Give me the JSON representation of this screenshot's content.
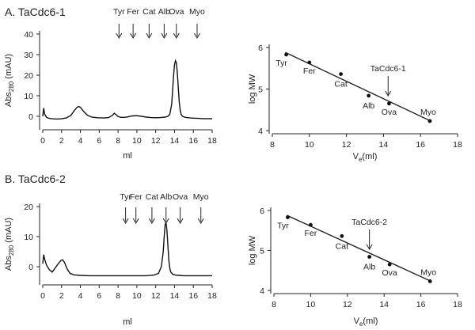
{
  "colors": {
    "ink": "#222222",
    "trace": "#111111",
    "background": "#ffffff"
  },
  "chart_data": [
    {
      "type": "line",
      "panel": "A",
      "title": "A. TaCdc6-1",
      "xlabel": "ml",
      "ylabel": "Abs280 (mAU)",
      "ylabel_main": "Abs",
      "ylabel_sub": "280",
      "ylabel_unit": " (mAU)",
      "xlim": [
        0,
        18
      ],
      "ylim": [
        -5,
        40
      ],
      "xticks": [
        "0",
        "2",
        "4",
        "6",
        "8",
        "10",
        "12",
        "14",
        "16",
        "18"
      ],
      "yticks": [
        "0",
        "10",
        "20",
        "30",
        "40"
      ],
      "grid": false,
      "markers": [
        {
          "name": "Tyr",
          "x": 8.1
        },
        {
          "name": "Fer",
          "x": 9.6
        },
        {
          "name": "Cat",
          "x": 11.3
        },
        {
          "name": "Alb",
          "x": 12.9
        },
        {
          "name": "Ova",
          "x": 14.2
        },
        {
          "name": "Myo",
          "x": 16.4
        }
      ],
      "series": [
        {
          "x": [
            0,
            0.1,
            0.2,
            0.4,
            0.7,
            1.0,
            1.5,
            2.0,
            2.5,
            3.0,
            3.3,
            3.6,
            3.8,
            4.0,
            4.2,
            4.5,
            4.8,
            5.2,
            5.8,
            6.5,
            7.0,
            7.4,
            7.6,
            7.8,
            8.0,
            8.3,
            8.7,
            9.0,
            9.5,
            10.0,
            10.5,
            11.0,
            11.5,
            12.0,
            12.5,
            13.0,
            13.3,
            13.5,
            13.7,
            13.8,
            13.9,
            14.0,
            14.1,
            14.2,
            14.3,
            14.4,
            14.5,
            14.6,
            14.7,
            14.8,
            15.0,
            15.3,
            15.7,
            16.0,
            16.5,
            17.0,
            17.5,
            18.0
          ],
          "y": [
            0,
            4,
            1,
            -0.5,
            -1,
            -1.2,
            -1.3,
            -1.2,
            -0.8,
            0.5,
            2.5,
            4.2,
            4.8,
            4.4,
            3.2,
            1.6,
            0.4,
            -0.4,
            -0.7,
            -0.8,
            -0.6,
            0.5,
            1.5,
            0.8,
            -0.1,
            -0.5,
            -0.5,
            -0.3,
            0.2,
            0.3,
            0,
            -0.4,
            -0.6,
            -0.7,
            -0.6,
            -0.4,
            0,
            1,
            6,
            13,
            20,
            25,
            27,
            26,
            21,
            14,
            7,
            3,
            1,
            0.2,
            -0.3,
            -0.6,
            -0.8,
            -0.9,
            -1,
            -1.1,
            -1.1,
            -1.2
          ]
        }
      ]
    },
    {
      "type": "scatter",
      "panel": "A",
      "xlabel_main": "V",
      "xlabel_sub": "e",
      "xlabel_unit": "(ml)",
      "ylabel": "log MW",
      "xlim": [
        8,
        18
      ],
      "ylim": [
        4,
        6
      ],
      "xticks": [
        "8",
        "10",
        "12",
        "14",
        "16",
        "18"
      ],
      "yticks": [
        "4",
        "5",
        "6"
      ],
      "grid": false,
      "points": [
        {
          "label": "Tyr",
          "x": 8.75,
          "y": 5.83
        },
        {
          "label": "Fer",
          "x": 10.0,
          "y": 5.64
        },
        {
          "label": "Cat",
          "x": 11.7,
          "y": 5.36
        },
        {
          "label": "Alb",
          "x": 13.2,
          "y": 4.84
        },
        {
          "label": "Ova",
          "x": 14.3,
          "y": 4.65
        },
        {
          "label": "Myo",
          "x": 16.5,
          "y": 4.23
        }
      ],
      "fit": {
        "x": [
          8.7,
          16.6
        ],
        "y": [
          5.88,
          4.22
        ]
      },
      "annotation": {
        "text": "TaCdc6-1",
        "x": 14.25,
        "y": 4.78
      }
    },
    {
      "type": "line",
      "panel": "B",
      "title": "B. TaCdc6-2",
      "xlabel": "ml",
      "ylabel": "Abs280 (mAU)",
      "ylabel_main": "Abs",
      "ylabel_sub": "280",
      "ylabel_unit": " (mAU)",
      "xlim": [
        0,
        18
      ],
      "ylim": [
        -5,
        20
      ],
      "xticks": [
        "0",
        "2",
        "4",
        "6",
        "8",
        "10",
        "12",
        "14",
        "16",
        "18"
      ],
      "yticks": [
        "0",
        "10",
        "20"
      ],
      "grid": false,
      "markers": [
        {
          "name": "Tyr",
          "x": 8.8
        },
        {
          "name": "Fer",
          "x": 9.9
        },
        {
          "name": "Cat",
          "x": 11.6
        },
        {
          "name": "Alb",
          "x": 13.1
        },
        {
          "name": "Ova",
          "x": 14.6
        },
        {
          "name": "Myo",
          "x": 16.8
        }
      ],
      "series": [
        {
          "x": [
            0,
            0.1,
            0.2,
            0.4,
            0.7,
            1.0,
            1.3,
            1.6,
            1.9,
            2.1,
            2.3,
            2.6,
            2.9,
            3.3,
            4.0,
            5.0,
            6.0,
            7.0,
            8.0,
            9.0,
            10.0,
            11.0,
            11.8,
            12.3,
            12.6,
            12.8,
            12.9,
            13.0,
            13.1,
            13.2,
            13.3,
            13.4,
            13.5,
            13.6,
            13.8,
            14.1,
            14.5,
            15.0,
            16.0,
            17.0,
            18.0
          ],
          "y": [
            1,
            4,
            2.5,
            0.5,
            -1,
            -1.8,
            -0.5,
            0.8,
            2,
            2.3,
            1.5,
            -0.8,
            -2.2,
            -2.7,
            -2.9,
            -3,
            -3,
            -3,
            -3,
            -3,
            -3,
            -3,
            -2.8,
            -2.2,
            0,
            5,
            10,
            14,
            14.8,
            12,
            7,
            2,
            -0.5,
            -1.8,
            -2.5,
            -2.8,
            -2.9,
            -3,
            -3,
            -3,
            -3
          ]
        }
      ]
    },
    {
      "type": "scatter",
      "panel": "B",
      "xlabel_main": "V",
      "xlabel_sub": "e",
      "xlabel_unit": "(ml)",
      "ylabel": "log MW",
      "xlim": [
        8,
        18
      ],
      "ylim": [
        4,
        6
      ],
      "xticks": [
        "8",
        "10",
        "12",
        "14",
        "16",
        "18"
      ],
      "yticks": [
        "4",
        "5",
        "6"
      ],
      "grid": false,
      "points": [
        {
          "label": "Tyr",
          "x": 8.75,
          "y": 5.83
        },
        {
          "label": "Fer",
          "x": 10.0,
          "y": 5.64
        },
        {
          "label": "Cat",
          "x": 11.7,
          "y": 5.36
        },
        {
          "label": "Alb",
          "x": 13.2,
          "y": 4.84
        },
        {
          "label": "Ova",
          "x": 14.3,
          "y": 4.65
        },
        {
          "label": "Myo",
          "x": 16.5,
          "y": 4.23
        }
      ],
      "fit": {
        "x": [
          8.7,
          16.6
        ],
        "y": [
          5.88,
          4.22
        ]
      },
      "annotation": {
        "text": "TaCdc6-2",
        "x": 13.2,
        "y": 4.97
      }
    }
  ]
}
